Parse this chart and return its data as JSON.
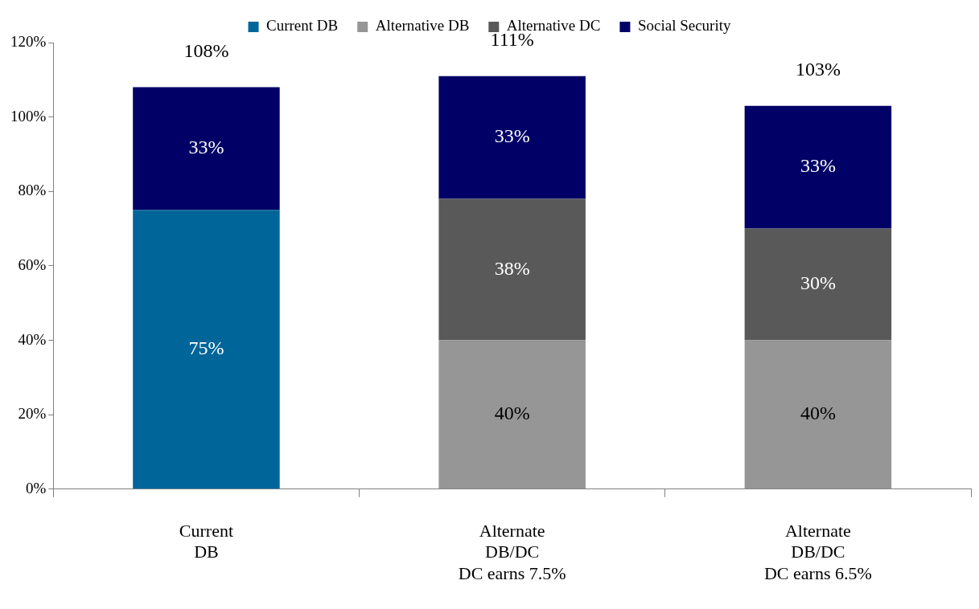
{
  "chart_data": {
    "type": "bar",
    "stacked": true,
    "categories": [
      "Current\nDB",
      "Alternate\nDB/DC\nDC earns 7.5%",
      "Alternate\nDB/DC\nDC earns 6.5%"
    ],
    "series": [
      {
        "name": "Current DB",
        "color": "#006699",
        "values": [
          75,
          null,
          null
        ],
        "value_labels": [
          "75%",
          null,
          null
        ]
      },
      {
        "name": "Alternative DB",
        "color": "#969696",
        "values": [
          null,
          40,
          40
        ],
        "value_labels": [
          null,
          "40%",
          "40%"
        ]
      },
      {
        "name": "Alternative DC",
        "color": "#595959",
        "values": [
          null,
          38,
          30
        ],
        "value_labels": [
          null,
          "38%",
          "30%"
        ]
      },
      {
        "name": "Social Security",
        "color": "#000066",
        "values": [
          33,
          33,
          33
        ],
        "value_labels": [
          "33%",
          "33%",
          "33%"
        ]
      }
    ],
    "totals": [
      "108%",
      "111%",
      "103%"
    ],
    "ylim": [
      0,
      120
    ],
    "yticks": [
      {
        "value": 0,
        "label": "0%"
      },
      {
        "value": 20,
        "label": "20%"
      },
      {
        "value": 40,
        "label": "40%"
      },
      {
        "value": 60,
        "label": "60%"
      },
      {
        "value": 80,
        "label": "80%"
      },
      {
        "value": 100,
        "label": "100%"
      },
      {
        "value": 120,
        "label": "120%"
      }
    ],
    "grid": false,
    "legend": "top"
  }
}
